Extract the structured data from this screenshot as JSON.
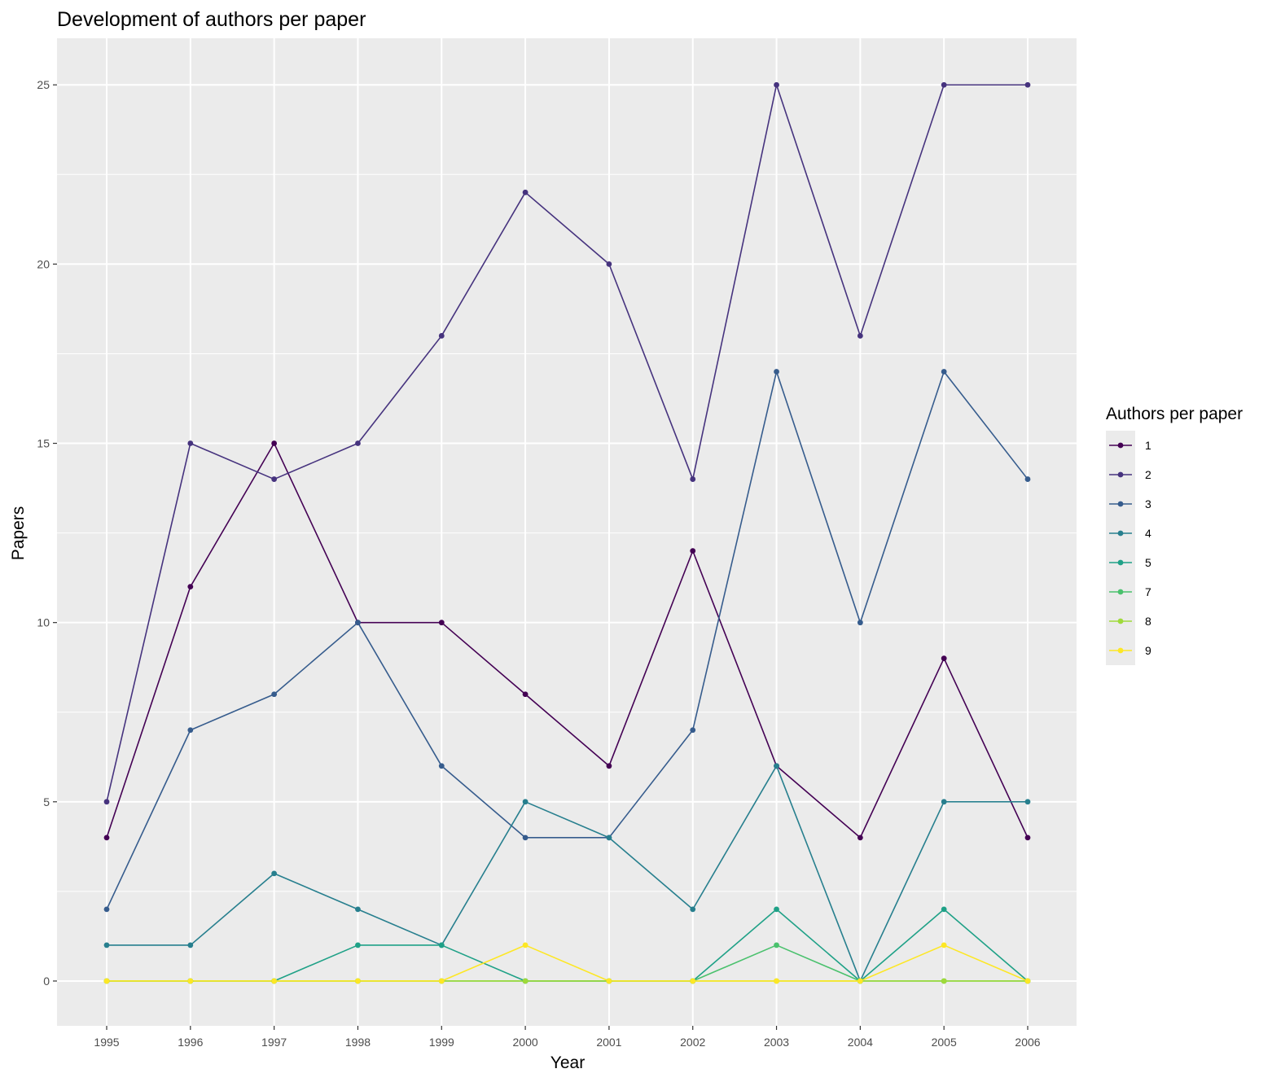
{
  "chart_data": {
    "type": "line",
    "title": "Development of authors per paper",
    "xlabel": "Year",
    "ylabel": "Papers",
    "x": [
      1995,
      1996,
      1997,
      1998,
      1999,
      2000,
      2001,
      2002,
      2003,
      2004,
      2005,
      2006
    ],
    "x_tick_labels": [
      "1995",
      "1996",
      "1997",
      "1998",
      "1999",
      "2000",
      "2001",
      "2002",
      "2003",
      "2004",
      "2005",
      "2006"
    ],
    "yticks": [
      0,
      5,
      10,
      15,
      20,
      25
    ],
    "y_tick_labels": [
      "0",
      "5",
      "10",
      "15",
      "20",
      "25"
    ],
    "ylim": [
      -1.25,
      26.3
    ],
    "grid": true,
    "legend": {
      "title": "Authors per paper",
      "position": "right"
    },
    "series": [
      {
        "name": "1",
        "color": "#440154",
        "values": [
          4,
          11,
          15,
          10,
          10,
          8,
          6,
          12,
          6,
          4,
          9,
          4
        ]
      },
      {
        "name": "2",
        "color": "#46337E",
        "values": [
          5,
          15,
          14,
          15,
          18,
          22,
          20,
          14,
          25,
          18,
          25,
          25
        ]
      },
      {
        "name": "3",
        "color": "#365C8D",
        "values": [
          2,
          7,
          8,
          10,
          6,
          4,
          4,
          7,
          17,
          10,
          17,
          14
        ]
      },
      {
        "name": "4",
        "color": "#277F8E",
        "values": [
          1,
          1,
          3,
          2,
          1,
          5,
          4,
          2,
          6,
          0,
          5,
          5
        ]
      },
      {
        "name": "5",
        "color": "#1FA187",
        "values": [
          0,
          0,
          0,
          1,
          1,
          0,
          0,
          0,
          2,
          0,
          2,
          0
        ]
      },
      {
        "name": "7",
        "color": "#4AC16D",
        "values": [
          0,
          0,
          0,
          0,
          0,
          0,
          0,
          0,
          1,
          0,
          0,
          0
        ]
      },
      {
        "name": "8",
        "color": "#9FDA3A",
        "values": [
          0,
          0,
          0,
          0,
          0,
          0,
          0,
          0,
          0,
          0,
          0,
          0
        ]
      },
      {
        "name": "9",
        "color": "#FDE725",
        "values": [
          0,
          0,
          0,
          0,
          0,
          1,
          0,
          0,
          0,
          0,
          1,
          0
        ]
      }
    ]
  }
}
